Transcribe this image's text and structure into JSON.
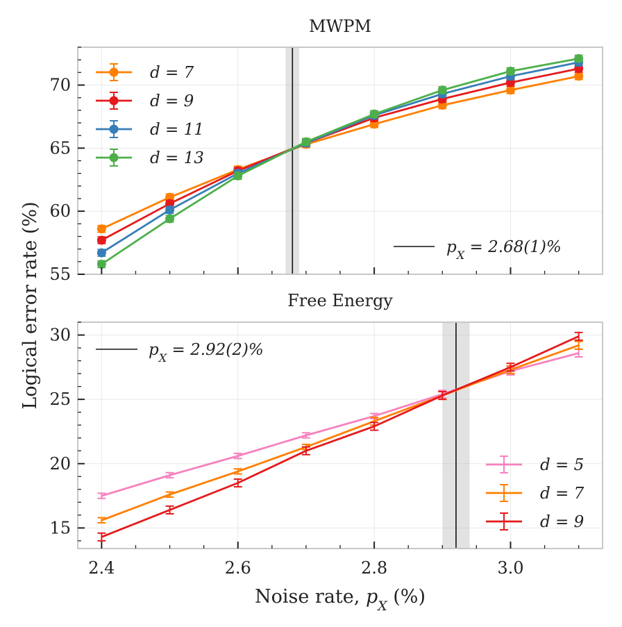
{
  "figure": {
    "ylabel": "Logical error rate (%)",
    "xlabel": "Noise rate, p_X (%)"
  },
  "chart_data": [
    {
      "type": "line",
      "title": "MWPM",
      "xlabel": "",
      "ylabel": "Logical error rate (%)",
      "xlim": [
        2.365,
        3.135
      ],
      "ylim": [
        55,
        73
      ],
      "xticks": [
        "2.4",
        "2.6",
        "2.8",
        "3.0"
      ],
      "xtick_values": [
        2.4,
        2.6,
        2.8,
        3.0
      ],
      "yticks": [
        "55",
        "60",
        "65",
        "70"
      ],
      "ytick_values": [
        55,
        60,
        65,
        70
      ],
      "x": [
        2.4,
        2.5,
        2.6,
        2.7,
        2.8,
        2.9,
        3.0,
        3.1
      ],
      "series": [
        {
          "name": "d = 7",
          "color": "#ff7f00",
          "values": [
            58.6,
            61.1,
            63.3,
            65.3,
            66.9,
            68.4,
            69.6,
            70.7
          ]
        },
        {
          "name": "d = 9",
          "color": "#e41a1c",
          "values": [
            57.7,
            60.6,
            63.2,
            65.4,
            67.4,
            68.9,
            70.2,
            71.3
          ]
        },
        {
          "name": "d = 11",
          "color": "#377eb8",
          "values": [
            56.7,
            60.1,
            63.0,
            65.4,
            67.6,
            69.3,
            70.7,
            71.8
          ]
        },
        {
          "name": "d = 13",
          "color": "#4daf4a",
          "values": [
            55.8,
            59.4,
            62.8,
            65.5,
            67.7,
            69.6,
            71.1,
            72.1
          ]
        }
      ],
      "threshold": {
        "value": 2.68,
        "band": [
          2.67,
          2.69
        ],
        "label": "p_X = 2.68(1)%"
      },
      "legend_position": "upper-left",
      "threshold_legend_position": "lower-right",
      "grid": true
    },
    {
      "type": "line",
      "title": "Free Energy",
      "xlabel": "Noise rate, p_X (%)",
      "ylabel": "Logical error rate (%)",
      "xlim": [
        2.365,
        3.135
      ],
      "ylim": [
        13.4,
        31.0
      ],
      "xticks": [
        "2.4",
        "2.6",
        "2.8",
        "3.0"
      ],
      "xtick_values": [
        2.4,
        2.6,
        2.8,
        3.0
      ],
      "yticks": [
        "15",
        "20",
        "25",
        "30"
      ],
      "ytick_values": [
        15,
        20,
        25,
        30
      ],
      "x": [
        2.4,
        2.5,
        2.6,
        2.7,
        2.8,
        2.9,
        3.0,
        3.1
      ],
      "series": [
        {
          "name": "d = 5",
          "color": "#f781bf",
          "values": [
            17.5,
            19.1,
            20.6,
            22.2,
            23.7,
            25.4,
            27.2,
            28.6
          ],
          "errors": [
            0.2,
            0.2,
            0.2,
            0.2,
            0.2,
            0.3,
            0.3,
            0.3
          ]
        },
        {
          "name": "d = 7",
          "color": "#ff7f00",
          "values": [
            15.6,
            17.6,
            19.4,
            21.3,
            23.3,
            25.3,
            27.3,
            29.2
          ],
          "errors": [
            0.2,
            0.2,
            0.2,
            0.2,
            0.3,
            0.3,
            0.3,
            0.3
          ]
        },
        {
          "name": "d = 9",
          "color": "#e41a1c",
          "values": [
            14.3,
            16.4,
            18.5,
            21.0,
            22.9,
            25.3,
            27.5,
            29.9
          ],
          "errors": [
            0.3,
            0.3,
            0.3,
            0.3,
            0.3,
            0.3,
            0.3,
            0.3
          ]
        }
      ],
      "threshold": {
        "value": 2.92,
        "band": [
          2.9,
          2.94
        ],
        "label": "p_X = 2.92(2)%"
      },
      "legend_position": "lower-right",
      "threshold_legend_position": "upper-left",
      "grid": true
    }
  ]
}
